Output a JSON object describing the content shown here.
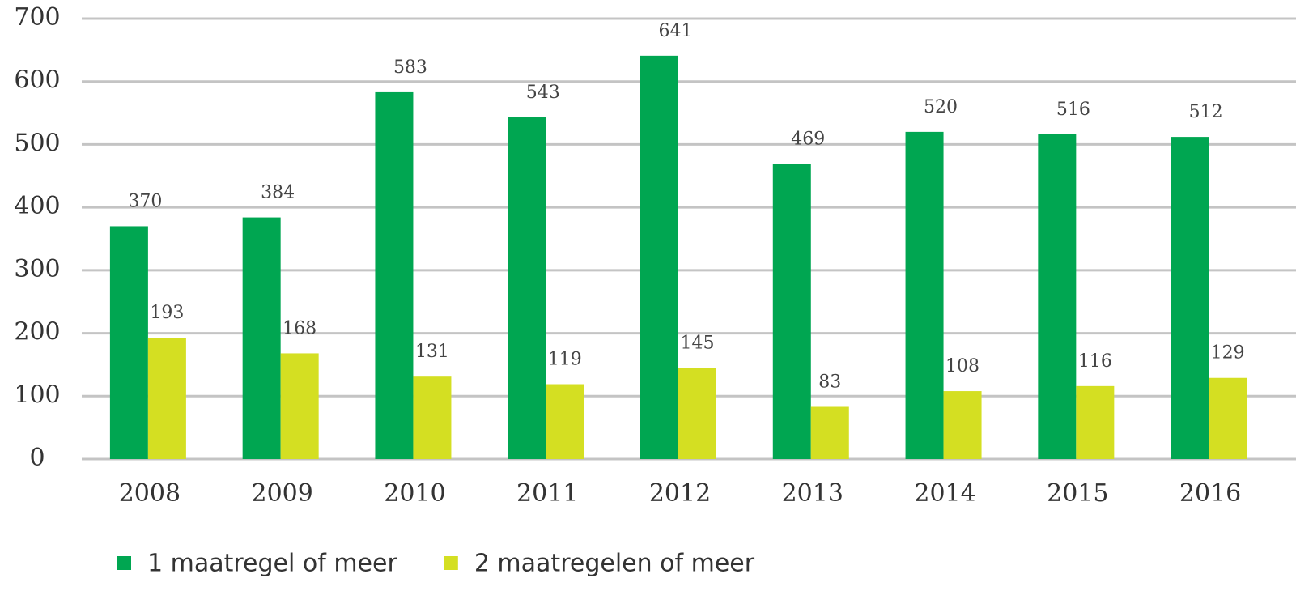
{
  "chart_data": {
    "type": "bar",
    "categories": [
      "2008",
      "2009",
      "2010",
      "2011",
      "2012",
      "2013",
      "2014",
      "2015",
      "2016"
    ],
    "series": [
      {
        "name": "1 maatregel of meer",
        "color": "#00a651",
        "values": [
          370,
          384,
          583,
          543,
          641,
          469,
          520,
          516,
          512
        ]
      },
      {
        "name": "2 maatregelen of meer",
        "color": "#d4df22",
        "values": [
          193,
          168,
          131,
          119,
          145,
          83,
          108,
          116,
          129
        ]
      }
    ],
    "ylim": [
      0,
      700
    ],
    "yticks": [
      0,
      100,
      200,
      300,
      400,
      500,
      600,
      700
    ],
    "grid": true,
    "legend": "bottom"
  }
}
